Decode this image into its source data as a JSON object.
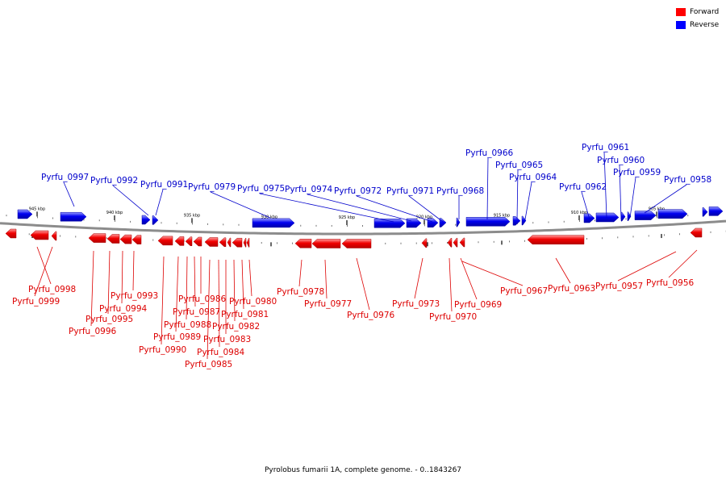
{
  "legend": {
    "forward_label": "Forward",
    "reverse_label": "Reverse",
    "forward_color": "#ff0000",
    "reverse_color": "#0000ff"
  },
  "caption": "Pyrolobus fumarii 1A, complete genome. - 0..1843267",
  "ruler_ticks": [
    "945 kbp",
    "940 kbp",
    "935 kbp",
    "930 kbp",
    "925 kbp",
    "920 kbp",
    "915 kbp",
    "910 kbp",
    "905 kbp"
  ],
  "reverse_genes": [
    "Pyrfu_0997",
    "Pyrfu_0992",
    "Pyrfu_0991",
    "Pyrfu_0979",
    "Pyrfu_0975",
    "Pyrfu_0974",
    "Pyrfu_0972",
    "Pyrfu_0971",
    "Pyrfu_0968",
    "Pyrfu_0966",
    "Pyrfu_0965",
    "Pyrfu_0964",
    "Pyrfu_0962",
    "Pyrfu_0961",
    "Pyrfu_0960",
    "Pyrfu_0959",
    "Pyrfu_0958"
  ],
  "forward_genes": [
    "Pyrfu_0998",
    "Pyrfu_0999",
    "Pyrfu_0993",
    "Pyrfu_0994",
    "Pyrfu_0995",
    "Pyrfu_0996",
    "Pyrfu_0986",
    "Pyrfu_0987",
    "Pyrfu_0988",
    "Pyrfu_0989",
    "Pyrfu_0990",
    "Pyrfu_0980",
    "Pyrfu_0981",
    "Pyrfu_0982",
    "Pyrfu_0983",
    "Pyrfu_0984",
    "Pyrfu_0985",
    "Pyrfu_0978",
    "Pyrfu_0977",
    "Pyrfu_0976",
    "Pyrfu_0973",
    "Pyrfu_0970",
    "Pyrfu_0969",
    "Pyrfu_0967",
    "Pyrfu_0963",
    "Pyrfu_0957",
    "Pyrfu_0956"
  ]
}
